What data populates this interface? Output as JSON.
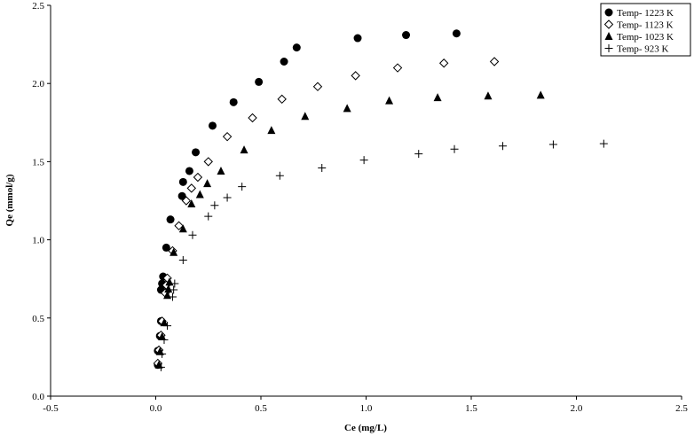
{
  "chart_data": {
    "type": "scatter",
    "x_label": "Ce (mg/L)",
    "y_label": "Qe (mmol/g)",
    "xlim": [
      -0.5,
      2.5
    ],
    "xticks": [
      -0.5,
      {
        "value": 0,
        "label": "0.0"
      },
      0.5,
      {
        "value": 1,
        "label": "1.0"
      },
      1.5,
      {
        "value": 2,
        "label": "2.0"
      },
      2.5
    ],
    "ylim": [
      0,
      2.5
    ],
    "yticks": [
      {
        "value": 0,
        "label": "0.0"
      },
      0.5,
      {
        "value": 1,
        "label": "1.0"
      },
      1.5,
      {
        "value": 2,
        "label": "2.0"
      },
      2.5
    ],
    "legend": "top-right",
    "color": "#000000",
    "series": [
      {
        "name": "Temp- 1223 K",
        "marker": "circle",
        "x": [
          0.01,
          0.01,
          0.02,
          0.025,
          0.025,
          0.03,
          0.035,
          0.05,
          0.07,
          0.125,
          0.13,
          0.16,
          0.19,
          0.27,
          0.37,
          0.49,
          0.61,
          0.67,
          0.96,
          1.19,
          1.43
        ],
        "values": [
          0.2,
          0.29,
          0.385,
          0.48,
          0.68,
          0.72,
          0.765,
          0.95,
          1.13,
          1.28,
          1.37,
          1.44,
          1.56,
          1.73,
          1.88,
          2.01,
          2.14,
          2.23,
          2.29,
          2.31,
          2.32
        ]
      },
      {
        "name": "Temp- 1123 K",
        "marker": "diamond",
        "x": [
          0.01,
          0.015,
          0.025,
          0.03,
          0.045,
          0.05,
          0.055,
          0.08,
          0.11,
          0.145,
          0.17,
          0.2,
          0.25,
          0.34,
          0.46,
          0.6,
          0.77,
          0.95,
          1.15,
          1.37,
          1.61
        ],
        "values": [
          0.21,
          0.295,
          0.39,
          0.48,
          0.66,
          0.71,
          0.755,
          0.93,
          1.09,
          1.25,
          1.33,
          1.4,
          1.5,
          1.66,
          1.78,
          1.9,
          1.98,
          2.05,
          2.1,
          2.13,
          2.14
        ]
      },
      {
        "name": "Temp- 1023 K",
        "marker": "triangle",
        "x": [
          0.015,
          0.02,
          0.03,
          0.04,
          0.055,
          0.06,
          0.065,
          0.085,
          0.13,
          0.17,
          0.21,
          0.245,
          0.31,
          0.42,
          0.55,
          0.71,
          0.91,
          1.11,
          1.34,
          1.58,
          1.83
        ],
        "values": [
          0.2,
          0.285,
          0.38,
          0.47,
          0.645,
          0.685,
          0.73,
          0.92,
          1.07,
          1.23,
          1.29,
          1.36,
          1.44,
          1.575,
          1.7,
          1.79,
          1.84,
          1.89,
          1.91,
          1.92,
          1.925
        ]
      },
      {
        "name": "Temp- 923 K",
        "marker": "plus",
        "x": [
          0.025,
          0.03,
          0.04,
          0.055,
          0.08,
          0.085,
          0.09,
          0.13,
          0.175,
          0.25,
          0.28,
          0.34,
          0.41,
          0.59,
          0.79,
          0.99,
          1.25,
          1.42,
          1.65,
          1.89,
          2.13
        ],
        "values": [
          0.185,
          0.27,
          0.36,
          0.45,
          0.635,
          0.68,
          0.72,
          0.87,
          1.03,
          1.15,
          1.22,
          1.27,
          1.34,
          1.41,
          1.46,
          1.51,
          1.55,
          1.58,
          1.6,
          1.61,
          1.615
        ]
      }
    ]
  }
}
